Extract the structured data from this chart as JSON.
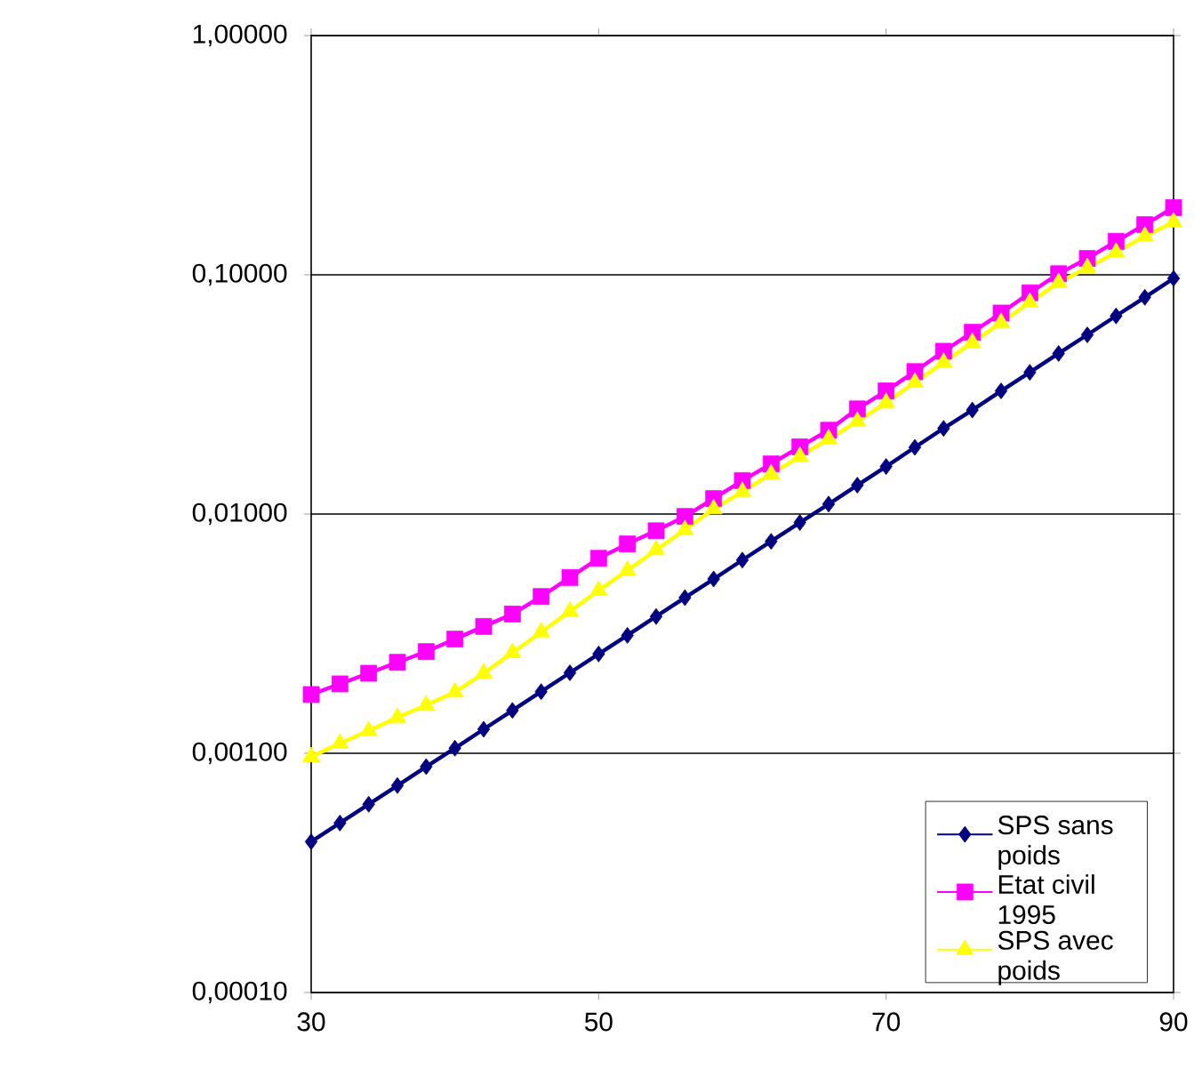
{
  "chart_data": {
    "type": "line",
    "log": "y",
    "grid": "y",
    "legend": "bottom right",
    "x": [
      30,
      32,
      34,
      36,
      38,
      40,
      42,
      44,
      46,
      48,
      50,
      52,
      54,
      56,
      58,
      60,
      62,
      64,
      66,
      68,
      70,
      72,
      74,
      76,
      78,
      80,
      82,
      84,
      86,
      88,
      90
    ],
    "xlim": [
      30,
      90
    ],
    "xticks": [
      30,
      50,
      70,
      90
    ],
    "ylim": [
      0.0001,
      1
    ],
    "yticks": [
      {
        "value": 0.0001,
        "label": "0,00010"
      },
      {
        "value": 0.001,
        "label": "0,00100"
      },
      {
        "value": 0.01,
        "label": "0,01000"
      },
      {
        "value": 0.1,
        "label": "0,10000"
      },
      {
        "value": 1,
        "label": "1,00000"
      }
    ],
    "series": [
      {
        "name": "SPS sans poids",
        "color": "#000080",
        "marker": "diamond",
        "values": [
          0.000427,
          0.000511,
          0.000612,
          0.000733,
          0.000879,
          0.00105,
          0.00126,
          0.00151,
          0.00181,
          0.00217,
          0.0026,
          0.00311,
          0.00373,
          0.00447,
          0.00535,
          0.00642,
          0.00769,
          0.00921,
          0.011,
          0.0132,
          0.0158,
          0.019,
          0.0228,
          0.0272,
          0.0327,
          0.0391,
          0.0469,
          0.0561,
          0.0673,
          0.0805,
          0.0966
        ]
      },
      {
        "name": "Etat civil 1995",
        "color": "#ff00ff",
        "marker": "square",
        "values": [
          0.00176,
          0.00195,
          0.00216,
          0.0024,
          0.00266,
          0.003,
          0.00339,
          0.00382,
          0.00452,
          0.00543,
          0.00653,
          0.0075,
          0.00851,
          0.00977,
          0.0116,
          0.0138,
          0.0162,
          0.0191,
          0.0224,
          0.0275,
          0.0327,
          0.0394,
          0.0479,
          0.0575,
          0.0692,
          0.0841,
          0.101,
          0.117,
          0.138,
          0.162,
          0.191
        ]
      },
      {
        "name": "SPS avec poids",
        "color": "#ffff00",
        "marker": "triangle",
        "values": [
          0.000966,
          0.0011,
          0.00124,
          0.00141,
          0.00159,
          0.0018,
          0.00216,
          0.00263,
          0.00321,
          0.00392,
          0.00479,
          0.00581,
          0.00708,
          0.00859,
          0.0105,
          0.0124,
          0.0147,
          0.0174,
          0.0206,
          0.0244,
          0.0292,
          0.0355,
          0.043,
          0.0521,
          0.0631,
          0.0767,
          0.0927,
          0.107,
          0.124,
          0.145,
          0.166
        ]
      }
    ]
  }
}
